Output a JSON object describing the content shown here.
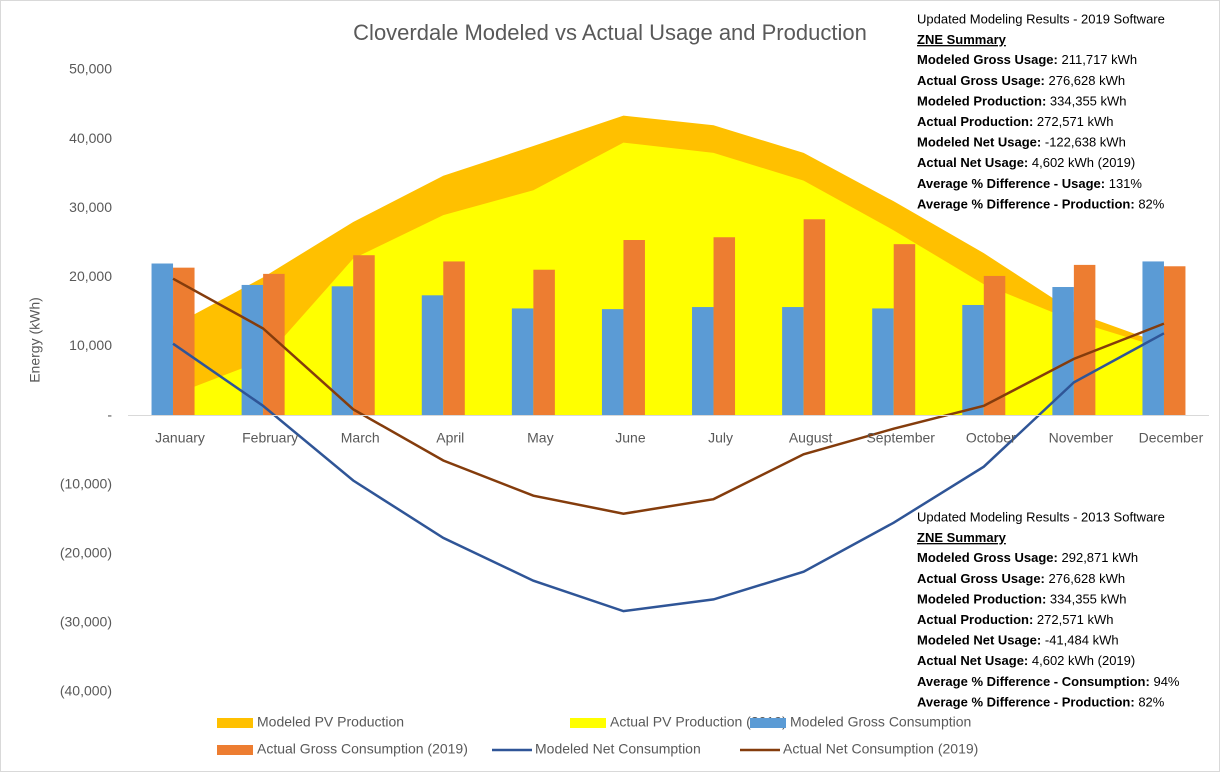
{
  "chart_data": {
    "type": "combo",
    "title": "Cloverdale Modeled vs Actual Usage and Production",
    "y_label": "Energy (kWh)",
    "categories": [
      "January",
      "February",
      "March",
      "April",
      "May",
      "June",
      "July",
      "August",
      "September",
      "October",
      "November",
      "December"
    ],
    "ylim": [
      -40000,
      50000
    ],
    "yticks": [
      {
        "value": -40000,
        "label": "(40,000)"
      },
      {
        "value": -30000,
        "label": "(30,000)"
      },
      {
        "value": -20000,
        "label": "(20,000)"
      },
      {
        "value": -10000,
        "label": "(10,000)"
      },
      {
        "value": 0,
        "label": "-"
      },
      {
        "value": 10000,
        "label": "10,000"
      },
      {
        "value": 20000,
        "label": "20,000"
      },
      {
        "value": 30000,
        "label": "30,000"
      },
      {
        "value": 40000,
        "label": "40,000"
      },
      {
        "value": 50000,
        "label": "50,000"
      }
    ],
    "grid": false,
    "legend": "bottom",
    "series": [
      {
        "name": "Modeled PV Production",
        "kind": "area",
        "color": "#ffc000",
        "values": [
          13000,
          20000,
          28000,
          34700,
          39000,
          43400,
          42000,
          38000,
          31000,
          23500,
          15000,
          10300
        ]
      },
      {
        "name": "Actual PV Production (2019)",
        "kind": "area",
        "color": "#ffff00",
        "values": [
          3000,
          8000,
          22700,
          29000,
          32600,
          39500,
          38000,
          34000,
          26800,
          19000,
          13700,
          9700
        ]
      },
      {
        "name": "Modeled Gross Consumption",
        "kind": "bar",
        "color": "#5b9bd5",
        "values": [
          22000,
          18900,
          18700,
          17400,
          15500,
          15400,
          15700,
          15700,
          15500,
          16000,
          18600,
          22300
        ]
      },
      {
        "name": "Actual Gross Consumption (2019)",
        "kind": "bar",
        "color": "#ed7d31",
        "values": [
          21400,
          20500,
          23200,
          22300,
          21100,
          25400,
          25800,
          28400,
          24800,
          20200,
          21800,
          21600
        ]
      },
      {
        "name": "Modeled Net Consumption",
        "kind": "line",
        "color": "#2f5597",
        "values": [
          10400,
          1400,
          -9400,
          -17700,
          -23900,
          -28300,
          -26600,
          -22600,
          -15500,
          -7400,
          4800,
          11900
        ]
      },
      {
        "name": "Actual Net Consumption (2019)",
        "kind": "line",
        "color": "#843c0c",
        "values": [
          19800,
          12600,
          900,
          -6500,
          -11600,
          -14200,
          -12100,
          -5600,
          -1900,
          1400,
          8200,
          13300
        ]
      }
    ],
    "annotations": [
      {
        "title": "Updated Modeling Results - 2019 Software",
        "heading": "ZNE Summary",
        "items": [
          {
            "label": "Modeled Gross Usage:",
            "value": "211,717 kWh"
          },
          {
            "label": "Actual Gross Usage:",
            "value": "276,628 kWh"
          },
          {
            "label": "Modeled Production:",
            "value": "334,355 kWh"
          },
          {
            "label": "Actual Production:",
            "value": "272,571 kWh"
          },
          {
            "label": "Modeled Net Usage:",
            "value": "-122,638 kWh"
          },
          {
            "label": "Actual Net Usage:",
            "value": "4,602 kWh (2019)"
          },
          {
            "label": "Average % Difference - Usage:",
            "value": "131%"
          },
          {
            "label": "Average % Difference - Production:",
            "value": "82%"
          }
        ]
      },
      {
        "title": "Updated Modeling Results - 2013 Software",
        "heading": "ZNE Summary",
        "items": [
          {
            "label": "Modeled Gross Usage:",
            "value": "292,871 kWh"
          },
          {
            "label": "Actual Gross Usage:",
            "value": "276,628 kWh"
          },
          {
            "label": "Modeled Production:",
            "value": "334,355 kWh"
          },
          {
            "label": "Actual Production:",
            "value": "272,571 kWh"
          },
          {
            "label": "Modeled Net Usage:",
            "value": "-41,484 kWh"
          },
          {
            "label": "Actual Net Usage:",
            "value": "4,602 kWh (2019)"
          },
          {
            "label": "Average % Difference - Consumption:",
            "value": "94%"
          },
          {
            "label": "Average % Difference - Production:",
            "value": "82%"
          }
        ]
      }
    ]
  }
}
